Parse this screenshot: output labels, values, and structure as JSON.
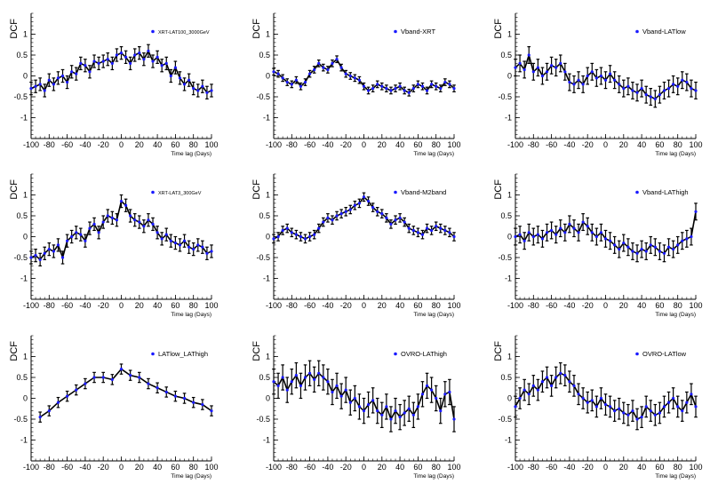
{
  "figure": {
    "ylabel": "DCF",
    "xlabel": "Time lag (Days)",
    "colors": {
      "line": "#000000",
      "marker": "#1a1aff",
      "axis": "#000000"
    }
  },
  "chart_data": [
    {
      "type": "line",
      "legend": "XRT-LAT100_3000GeV",
      "legend_position": "top-right",
      "xlim": [
        -100,
        100
      ],
      "ylim": [
        -1.5,
        1.5
      ],
      "xticks": [
        -100,
        -80,
        -60,
        -40,
        -20,
        0,
        20,
        40,
        60,
        80,
        100
      ],
      "yticks": [
        -1,
        -0.5,
        0,
        0.5,
        1
      ],
      "x": [
        -100,
        -95,
        -90,
        -85,
        -80,
        -75,
        -70,
        -65,
        -60,
        -55,
        -50,
        -45,
        -40,
        -35,
        -30,
        -25,
        -20,
        -15,
        -10,
        -5,
        0,
        5,
        10,
        15,
        20,
        25,
        30,
        35,
        40,
        45,
        50,
        55,
        60,
        65,
        70,
        75,
        80,
        85,
        90,
        95,
        100
      ],
      "y": [
        -0.3,
        -0.25,
        -0.2,
        -0.35,
        -0.1,
        -0.2,
        -0.05,
        0.0,
        -0.15,
        0.1,
        0.05,
        0.3,
        0.25,
        0.1,
        0.35,
        0.3,
        0.35,
        0.4,
        0.3,
        0.5,
        0.55,
        0.45,
        0.3,
        0.5,
        0.55,
        0.4,
        0.6,
        0.35,
        0.45,
        0.25,
        0.3,
        0.0,
        0.2,
        -0.05,
        -0.2,
        -0.1,
        -0.3,
        -0.35,
        -0.25,
        -0.4,
        -0.35
      ],
      "err": 0.15
    },
    {
      "type": "line",
      "legend": "Vband-XRT",
      "legend_position": "top-right",
      "xlim": [
        -100,
        100
      ],
      "ylim": [
        -1.5,
        1.5
      ],
      "xticks": [
        -100,
        -80,
        -60,
        -40,
        -20,
        0,
        20,
        40,
        60,
        80,
        100
      ],
      "yticks": [
        -1,
        -0.5,
        0,
        0.5,
        1
      ],
      "x": [
        -100,
        -95,
        -90,
        -85,
        -80,
        -75,
        -70,
        -65,
        -60,
        -55,
        -50,
        -45,
        -40,
        -35,
        -30,
        -25,
        -20,
        -15,
        -10,
        -5,
        0,
        5,
        10,
        15,
        20,
        25,
        30,
        35,
        40,
        45,
        50,
        55,
        60,
        65,
        70,
        75,
        80,
        85,
        90,
        95,
        100
      ],
      "y": [
        0.1,
        0.05,
        -0.05,
        -0.15,
        -0.2,
        -0.1,
        -0.25,
        -0.15,
        0.05,
        0.15,
        0.3,
        0.2,
        0.15,
        0.3,
        0.4,
        0.2,
        0.05,
        0.0,
        -0.05,
        -0.1,
        -0.25,
        -0.35,
        -0.3,
        -0.2,
        -0.25,
        -0.3,
        -0.35,
        -0.3,
        -0.25,
        -0.35,
        -0.4,
        -0.3,
        -0.2,
        -0.25,
        -0.35,
        -0.2,
        -0.25,
        -0.3,
        -0.15,
        -0.2,
        -0.3
      ],
      "err": 0.08
    },
    {
      "type": "line",
      "legend": "Vband-LATlow",
      "legend_position": "top-right",
      "xlim": [
        -100,
        100
      ],
      "ylim": [
        -1.5,
        1.5
      ],
      "xticks": [
        -100,
        -80,
        -60,
        -40,
        -20,
        0,
        20,
        40,
        60,
        80,
        100
      ],
      "yticks": [
        -1,
        -0.5,
        0,
        0.5,
        1
      ],
      "x": [
        -100,
        -95,
        -90,
        -85,
        -80,
        -75,
        -70,
        -65,
        -60,
        -55,
        -50,
        -45,
        -40,
        -35,
        -30,
        -25,
        -20,
        -15,
        -10,
        -5,
        0,
        5,
        10,
        15,
        20,
        25,
        30,
        35,
        40,
        45,
        50,
        55,
        60,
        65,
        70,
        75,
        80,
        85,
        90,
        95,
        100
      ],
      "y": [
        0.2,
        0.3,
        0.15,
        0.5,
        0.1,
        0.2,
        0.0,
        0.1,
        0.25,
        0.2,
        0.3,
        0.1,
        -0.15,
        -0.2,
        -0.1,
        -0.2,
        0.0,
        0.1,
        -0.05,
        0.0,
        -0.1,
        0.05,
        -0.1,
        -0.2,
        -0.3,
        -0.25,
        -0.35,
        -0.4,
        -0.3,
        -0.45,
        -0.5,
        -0.55,
        -0.45,
        -0.35,
        -0.3,
        -0.2,
        -0.25,
        -0.1,
        -0.15,
        -0.3,
        -0.35
      ],
      "err": 0.2
    },
    {
      "type": "line",
      "legend": "XRT-LAT3_300GeV",
      "legend_position": "top-right",
      "xlim": [
        -100,
        100
      ],
      "ylim": [
        -1.5,
        1.5
      ],
      "xticks": [
        -100,
        -80,
        -60,
        -40,
        -20,
        0,
        20,
        40,
        60,
        80,
        100
      ],
      "yticks": [
        -1,
        -0.5,
        0,
        0.5,
        1
      ],
      "x": [
        -100,
        -95,
        -90,
        -85,
        -80,
        -75,
        -70,
        -65,
        -60,
        -55,
        -50,
        -45,
        -40,
        -35,
        -30,
        -25,
        -20,
        -15,
        -10,
        -5,
        0,
        5,
        10,
        15,
        20,
        25,
        30,
        35,
        40,
        45,
        50,
        55,
        60,
        65,
        70,
        75,
        80,
        85,
        90,
        95,
        100
      ],
      "y": [
        -0.5,
        -0.45,
        -0.55,
        -0.4,
        -0.3,
        -0.35,
        -0.2,
        -0.5,
        -0.1,
        0.0,
        0.1,
        0.05,
        -0.1,
        0.2,
        0.3,
        0.1,
        0.35,
        0.5,
        0.45,
        0.4,
        0.85,
        0.75,
        0.5,
        0.4,
        0.35,
        0.25,
        0.4,
        0.3,
        0.1,
        -0.05,
        0.05,
        -0.1,
        -0.15,
        -0.2,
        -0.1,
        -0.25,
        -0.3,
        -0.2,
        -0.25,
        -0.4,
        -0.35
      ],
      "err": 0.15
    },
    {
      "type": "line",
      "legend": "Vband-M2band",
      "legend_position": "top-right",
      "xlim": [
        -100,
        100
      ],
      "ylim": [
        -1.5,
        1.5
      ],
      "xticks": [
        -100,
        -80,
        -60,
        -40,
        -20,
        0,
        20,
        40,
        60,
        80,
        100
      ],
      "yticks": [
        -1,
        -0.5,
        0,
        0.5,
        1
      ],
      "x": [
        -100,
        -95,
        -90,
        -85,
        -80,
        -75,
        -70,
        -65,
        -60,
        -55,
        -50,
        -45,
        -40,
        -35,
        -30,
        -25,
        -20,
        -15,
        -10,
        -5,
        0,
        5,
        10,
        15,
        20,
        25,
        30,
        35,
        40,
        45,
        50,
        55,
        60,
        65,
        70,
        75,
        80,
        85,
        90,
        95,
        100
      ],
      "y": [
        -0.05,
        0.0,
        0.15,
        0.2,
        0.1,
        0.05,
        0.0,
        -0.05,
        0.0,
        0.05,
        0.2,
        0.35,
        0.45,
        0.4,
        0.5,
        0.55,
        0.6,
        0.65,
        0.75,
        0.8,
        0.95,
        0.85,
        0.7,
        0.6,
        0.55,
        0.45,
        0.3,
        0.4,
        0.45,
        0.35,
        0.2,
        0.15,
        0.1,
        0.05,
        0.2,
        0.15,
        0.25,
        0.2,
        0.15,
        0.1,
        0.0
      ],
      "err": 0.1
    },
    {
      "type": "line",
      "legend": "Vband-LAThigh",
      "legend_position": "top-right",
      "xlim": [
        -100,
        100
      ],
      "ylim": [
        -1.5,
        1.5
      ],
      "xticks": [
        -100,
        -80,
        -60,
        -40,
        -20,
        0,
        20,
        40,
        60,
        80,
        100
      ],
      "yticks": [
        -1,
        -0.5,
        0,
        0.5,
        1
      ],
      "x": [
        -100,
        -95,
        -90,
        -85,
        -80,
        -75,
        -70,
        -65,
        -60,
        -55,
        -50,
        -45,
        -40,
        -35,
        -30,
        -25,
        -20,
        -15,
        -10,
        -5,
        0,
        5,
        10,
        15,
        20,
        25,
        30,
        35,
        40,
        45,
        50,
        55,
        60,
        65,
        70,
        75,
        80,
        85,
        90,
        95,
        100
      ],
      "y": [
        0.0,
        0.05,
        -0.1,
        0.1,
        0.0,
        0.05,
        -0.05,
        0.1,
        0.15,
        0.05,
        0.2,
        0.1,
        0.3,
        0.2,
        0.1,
        0.35,
        0.25,
        0.1,
        0.0,
        0.1,
        -0.05,
        -0.1,
        -0.2,
        -0.3,
        -0.15,
        -0.25,
        -0.35,
        -0.4,
        -0.3,
        -0.35,
        -0.2,
        -0.25,
        -0.35,
        -0.4,
        -0.25,
        -0.3,
        -0.2,
        -0.1,
        -0.05,
        0.0,
        0.6
      ],
      "err": 0.2
    },
    {
      "type": "line",
      "legend": "LATlow_LAThigh",
      "legend_position": "top-right",
      "xlim": [
        -100,
        100
      ],
      "ylim": [
        -1.5,
        1.5
      ],
      "xticks": [
        -100,
        -80,
        -60,
        -40,
        -20,
        0,
        20,
        40,
        60,
        80,
        100
      ],
      "yticks": [
        -1,
        -0.5,
        0,
        0.5,
        1
      ],
      "x": [
        -90,
        -80,
        -70,
        -60,
        -50,
        -40,
        -30,
        -20,
        -10,
        0,
        10,
        20,
        30,
        40,
        50,
        60,
        70,
        80,
        90,
        100
      ],
      "y": [
        -0.45,
        -0.3,
        -0.1,
        0.05,
        0.2,
        0.35,
        0.5,
        0.5,
        0.45,
        0.7,
        0.55,
        0.5,
        0.35,
        0.25,
        0.15,
        0.05,
        0.0,
        -0.1,
        -0.15,
        -0.3
      ],
      "err": 0.12
    },
    {
      "type": "line",
      "legend": "OVRO-LAThigh",
      "legend_position": "top-right",
      "xlim": [
        -100,
        100
      ],
      "ylim": [
        -1.5,
        1.5
      ],
      "xticks": [
        -100,
        -80,
        -60,
        -40,
        -20,
        0,
        20,
        40,
        60,
        80,
        100
      ],
      "yticks": [
        -1,
        -0.5,
        0,
        0.5,
        1
      ],
      "x": [
        -100,
        -95,
        -90,
        -85,
        -80,
        -75,
        -70,
        -65,
        -60,
        -55,
        -50,
        -45,
        -40,
        -35,
        -30,
        -25,
        -20,
        -15,
        -10,
        -5,
        0,
        5,
        10,
        15,
        20,
        25,
        30,
        35,
        40,
        45,
        50,
        55,
        60,
        65,
        70,
        75,
        80,
        85,
        90,
        95,
        100
      ],
      "y": [
        0.4,
        0.3,
        0.5,
        0.2,
        0.4,
        0.55,
        0.3,
        0.5,
        0.6,
        0.45,
        0.6,
        0.5,
        0.4,
        0.15,
        0.3,
        0.05,
        0.2,
        -0.1,
        0.0,
        -0.2,
        -0.3,
        -0.15,
        -0.05,
        -0.3,
        -0.4,
        -0.2,
        -0.5,
        -0.3,
        -0.45,
        -0.35,
        -0.25,
        -0.4,
        -0.2,
        0.1,
        0.3,
        0.2,
        0.0,
        -0.3,
        0.1,
        0.15,
        -0.5
      ],
      "err": 0.3
    },
    {
      "type": "line",
      "legend": "OVRO-LATlow",
      "legend_position": "top-right",
      "xlim": [
        -100,
        100
      ],
      "ylim": [
        -1.5,
        1.5
      ],
      "xticks": [
        -100,
        -80,
        -60,
        -40,
        -20,
        0,
        20,
        40,
        60,
        80,
        100
      ],
      "yticks": [
        -1,
        -0.5,
        0,
        0.5,
        1
      ],
      "x": [
        -100,
        -95,
        -90,
        -85,
        -80,
        -75,
        -70,
        -65,
        -60,
        -55,
        -50,
        -45,
        -40,
        -35,
        -30,
        -25,
        -20,
        -15,
        -10,
        -5,
        0,
        5,
        10,
        15,
        20,
        25,
        30,
        35,
        40,
        45,
        50,
        55,
        60,
        65,
        70,
        75,
        80,
        85,
        90,
        95,
        100
      ],
      "y": [
        -0.2,
        0.0,
        0.2,
        0.1,
        0.3,
        0.2,
        0.4,
        0.5,
        0.3,
        0.5,
        0.6,
        0.55,
        0.4,
        0.3,
        0.1,
        0.0,
        -0.1,
        -0.05,
        -0.2,
        0.0,
        -0.15,
        -0.2,
        -0.3,
        -0.25,
        -0.35,
        -0.4,
        -0.3,
        -0.5,
        -0.45,
        -0.2,
        -0.3,
        -0.4,
        -0.35,
        -0.2,
        -0.1,
        0.0,
        -0.2,
        -0.3,
        -0.1,
        0.1,
        -0.2
      ],
      "err": 0.25
    }
  ]
}
